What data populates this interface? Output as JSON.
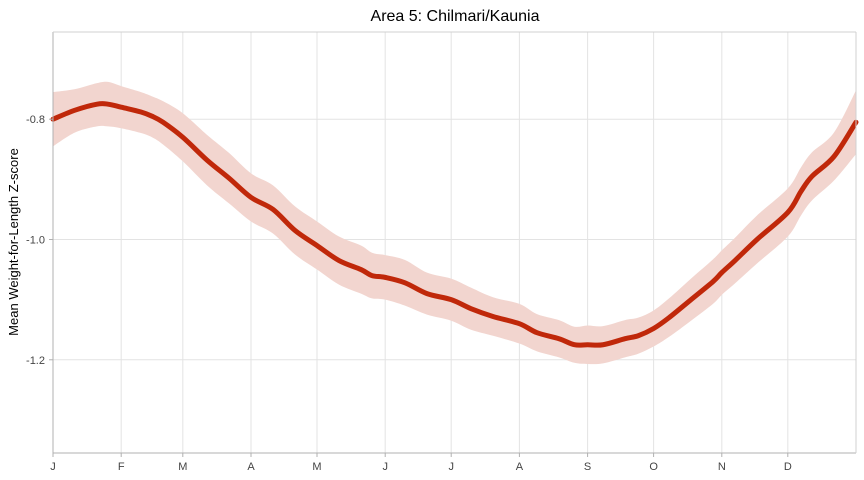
{
  "chart_data": {
    "type": "line",
    "title": "Area 5: Chilmari/Kaunia",
    "xlabel": "",
    "ylabel": "Mean Weight-for-Length Z-score",
    "xlim": [
      0,
      365
    ],
    "ylim": [
      -1.355,
      -0.655
    ],
    "x_ticks": [
      {
        "label": "J",
        "day": 0
      },
      {
        "label": "F",
        "day": 31
      },
      {
        "label": "M",
        "day": 59
      },
      {
        "label": "A",
        "day": 90
      },
      {
        "label": "M",
        "day": 120
      },
      {
        "label": "J",
        "day": 151
      },
      {
        "label": "J",
        "day": 181
      },
      {
        "label": "A",
        "day": 212
      },
      {
        "label": "S",
        "day": 243
      },
      {
        "label": "O",
        "day": 273
      },
      {
        "label": "N",
        "day": 304
      },
      {
        "label": "D",
        "day": 334
      }
    ],
    "y_ticks": [
      -0.8,
      -1.0,
      -1.2
    ],
    "grid": true,
    "colors": {
      "line": "#c0280a",
      "band": "#f2d5cf",
      "grid": "#e3e3e3",
      "axis": "#b0b0b0"
    },
    "series": [
      {
        "x": [
          0,
          10,
          20,
          25,
          31,
          40,
          45,
          50,
          59,
          70,
          80,
          90,
          100,
          110,
          120,
          130,
          140,
          145,
          151,
          160,
          170,
          181,
          190,
          200,
          212,
          220,
          230,
          237,
          243,
          250,
          260,
          266,
          273,
          280,
          290,
          300,
          304,
          310,
          320,
          334,
          340,
          345,
          355,
          365
        ],
        "y": [
          -0.8,
          -0.785,
          -0.775,
          -0.775,
          -0.78,
          -0.788,
          -0.795,
          -0.805,
          -0.83,
          -0.868,
          -0.898,
          -0.93,
          -0.95,
          -0.985,
          -1.01,
          -1.035,
          -1.05,
          -1.06,
          -1.063,
          -1.072,
          -1.09,
          -1.1,
          -1.115,
          -1.128,
          -1.14,
          -1.155,
          -1.165,
          -1.175,
          -1.175,
          -1.175,
          -1.165,
          -1.16,
          -1.148,
          -1.13,
          -1.1,
          -1.07,
          -1.055,
          -1.035,
          -1.0,
          -0.955,
          -0.92,
          -0.895,
          -0.862,
          -0.805
        ],
        "lower": [
          -0.845,
          -0.822,
          -0.812,
          -0.812,
          -0.815,
          -0.823,
          -0.83,
          -0.842,
          -0.87,
          -0.91,
          -0.94,
          -0.97,
          -0.99,
          -1.025,
          -1.05,
          -1.075,
          -1.09,
          -1.098,
          -1.1,
          -1.11,
          -1.125,
          -1.135,
          -1.15,
          -1.16,
          -1.173,
          -1.186,
          -1.196,
          -1.205,
          -1.207,
          -1.206,
          -1.196,
          -1.19,
          -1.178,
          -1.162,
          -1.135,
          -1.107,
          -1.092,
          -1.073,
          -1.04,
          -0.995,
          -0.96,
          -0.935,
          -0.902,
          -0.858
        ],
        "upper": [
          -0.755,
          -0.75,
          -0.74,
          -0.738,
          -0.745,
          -0.755,
          -0.762,
          -0.77,
          -0.79,
          -0.826,
          -0.856,
          -0.89,
          -0.91,
          -0.945,
          -0.97,
          -0.995,
          -1.01,
          -1.022,
          -1.026,
          -1.034,
          -1.055,
          -1.065,
          -1.08,
          -1.096,
          -1.107,
          -1.124,
          -1.134,
          -1.145,
          -1.143,
          -1.144,
          -1.134,
          -1.13,
          -1.118,
          -1.098,
          -1.065,
          -1.033,
          -1.018,
          -0.997,
          -0.96,
          -0.915,
          -0.88,
          -0.855,
          -0.822,
          -0.752
        ]
      }
    ]
  }
}
